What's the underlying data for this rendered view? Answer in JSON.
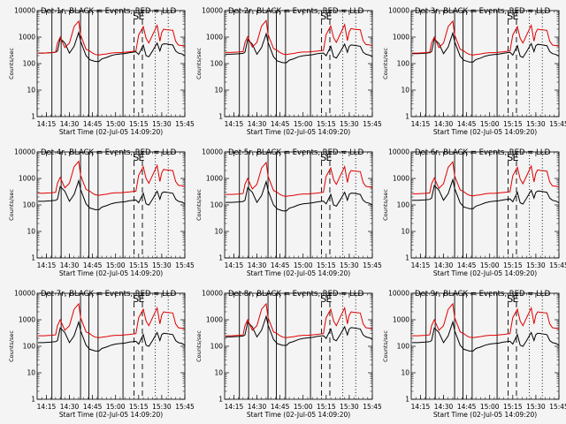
{
  "chart_data": {
    "type": "line",
    "layout": "grid-3x3",
    "shared": {
      "xlabel": "Start Time (02-Jul-05 14:09:20)",
      "ylabel": "Counts/sec",
      "xlim": [
        14.15,
        15.75
      ],
      "ylim": [
        1,
        10000
      ],
      "yscale": "log",
      "x_tick_labels": [
        "14:15",
        "14:30",
        "14:45",
        "15:00",
        "15:15",
        "15:30",
        "15:45"
      ],
      "y_tick_labels": [
        "1",
        "10",
        "100",
        "1000",
        "10000"
      ],
      "line_colors": {
        "black": "#000000",
        "red": "#e00000"
      },
      "x_points": [
        14.16,
        14.22,
        14.3,
        14.35,
        14.37,
        14.4,
        14.45,
        14.5,
        14.55,
        14.6,
        14.62,
        14.68,
        14.72,
        14.75,
        14.78,
        14.82,
        14.85,
        14.9,
        14.95,
        15.0,
        15.05,
        15.1,
        15.15,
        15.22,
        15.25,
        15.3,
        15.33,
        15.36,
        15.4,
        15.45,
        15.48,
        15.5,
        15.52,
        15.55,
        15.62,
        15.65,
        15.68,
        15.72,
        15.75
      ],
      "red_shape": [
        250,
        250,
        260,
        270,
        600,
        1000,
        400,
        600,
        2500,
        4000,
        1200,
        350,
        300,
        250,
        220,
        210,
        220,
        230,
        250,
        260,
        260,
        270,
        280,
        300,
        1200,
        2500,
        900,
        600,
        1200,
        2800,
        700,
        1500,
        2000,
        1900,
        1800,
        700,
        500,
        480,
        450
      ],
      "black_shape": [
        250,
        250,
        260,
        270,
        300,
        900,
        600,
        250,
        450,
        1500,
        700,
        200,
        140,
        130,
        120,
        120,
        150,
        170,
        200,
        220,
        230,
        240,
        260,
        280,
        220,
        500,
        200,
        180,
        300,
        600,
        300,
        500,
        560,
        550,
        500,
        300,
        250,
        230,
        200
      ],
      "solid_vlines": [
        14.31,
        14.41,
        14.62,
        14.71,
        14.81,
        15.08
      ],
      "dashed_vlines": [
        15.2,
        15.29
      ],
      "dotted_vlines": [
        15.43,
        15.57
      ],
      "markers": [
        {
          "text": "S",
          "x": 15.22
        },
        {
          "text": "E",
          "x": 15.28
        }
      ]
    },
    "panels": [
      {
        "title": "Det 1r, BLACK = Events, RED = LLD",
        "red_scale": 1.0,
        "black_scale": 1.0
      },
      {
        "title": "Det 2r, BLACK = Events, RED = LLD",
        "red_scale": 1.05,
        "black_scale": 0.9
      },
      {
        "title": "Det 3r, BLACK = Events, RED = LLD",
        "red_scale": 1.0,
        "black_scale": 0.95
      },
      {
        "title": "Det 4r, BLACK = Events, RED = LLD",
        "red_scale": 1.1,
        "black_scale": 0.55
      },
      {
        "title": "Det 5r, BLACK = Events, RED = LLD",
        "red_scale": 1.0,
        "black_scale": 0.5
      },
      {
        "title": "Det 6r, BLACK = Events, RED = LLD",
        "red_scale": 1.05,
        "black_scale": 0.6
      },
      {
        "title": "Det 7r, BLACK = Events, RED = LLD",
        "red_scale": 1.0,
        "black_scale": 0.55
      },
      {
        "title": "Det 8r, BLACK = Events, RED = LLD",
        "red_scale": 1.0,
        "black_scale": 0.9
      },
      {
        "title": "Det 9r, BLACK = Events, RED = LLD",
        "red_scale": 1.0,
        "black_scale": 0.55
      }
    ]
  }
}
